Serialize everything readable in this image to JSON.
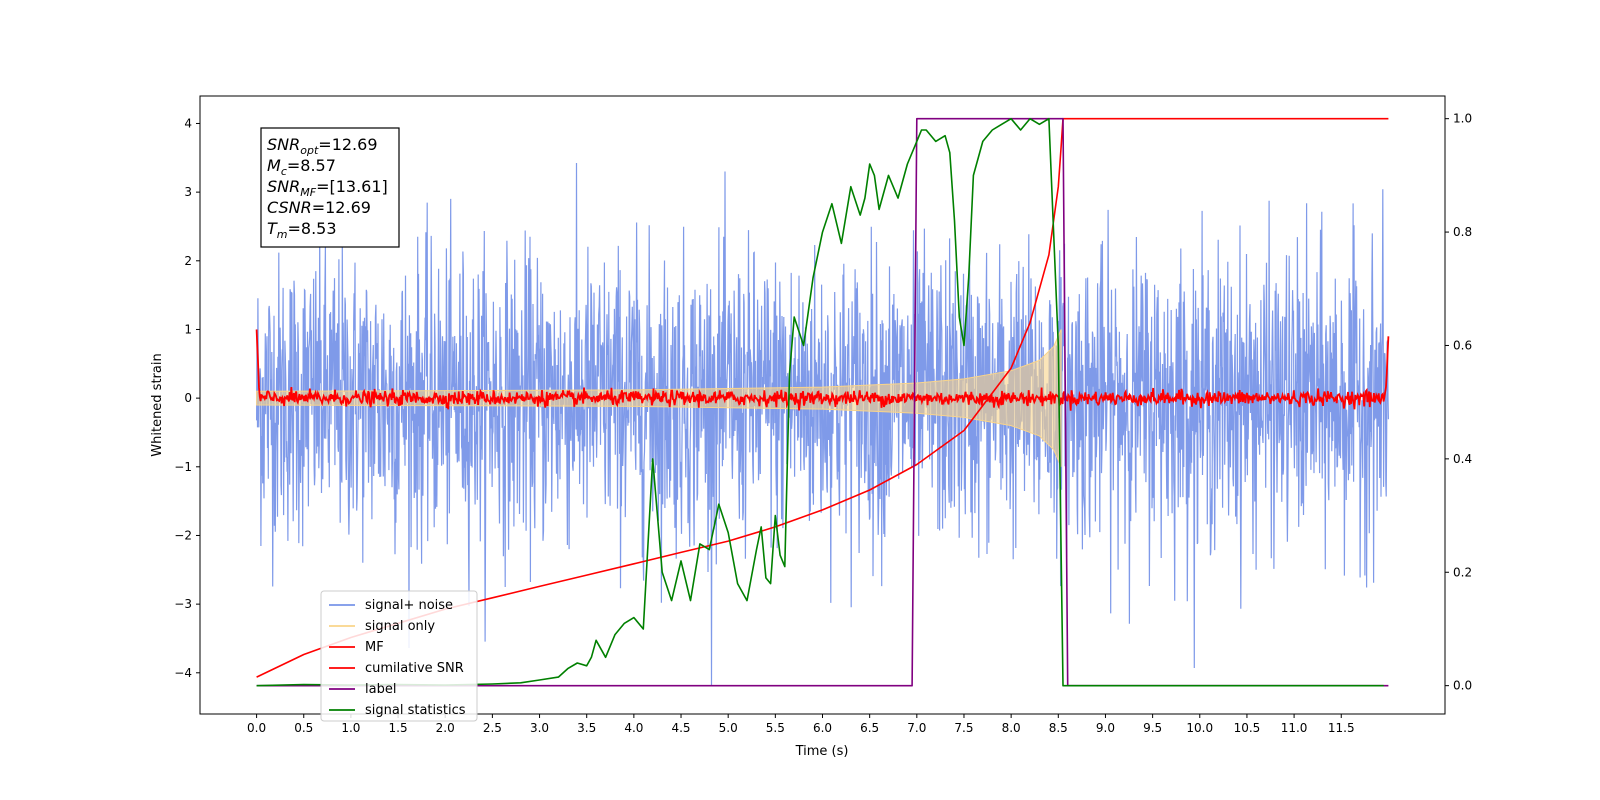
{
  "chart_data": {
    "type": "line",
    "xlabel": "Time (s)",
    "ylabel": "Whitened strain",
    "xlim": [
      -0.6,
      12.6
    ],
    "ylim": [
      -4.6,
      4.4
    ],
    "y2lim": [
      -0.05,
      1.04
    ],
    "x_ticks": [
      "0.0",
      "0.5",
      "1.0",
      "1.5",
      "2.0",
      "2.5",
      "3.0",
      "3.5",
      "4.0",
      "4.5",
      "5.0",
      "5.5",
      "6.0",
      "6.5",
      "7.0",
      "7.5",
      "8.0",
      "8.5",
      "9.0",
      "9.5",
      "10.0",
      "10.5",
      "11.0",
      "11.5"
    ],
    "y_ticks": [
      "4",
      "3",
      "2",
      "1",
      "0",
      "−1",
      "−2",
      "−3",
      "−4"
    ],
    "y2_ticks": [
      "1.0",
      "0.8",
      "0.6",
      "0.4",
      "0.2",
      "0.0"
    ],
    "legend_position": "lower-left",
    "legend": [
      {
        "label": "signal+ noise",
        "color": "#7895e8"
      },
      {
        "label": "signal only",
        "color": "#f9d48a"
      },
      {
        "label": "MF",
        "color": "#ff0000"
      },
      {
        "label": "cumilative SNR",
        "color": "#ff0000"
      },
      {
        "label": "label",
        "color": "#800080"
      },
      {
        "label": "signal statistics",
        "color": "#008000"
      }
    ],
    "annotation": [
      {
        "main": "SNR",
        "sub": "opt",
        "rest": "=12.69"
      },
      {
        "main": "M",
        "sub": "c",
        "rest": "=8.57"
      },
      {
        "main": "SNR",
        "sub": "MF",
        "rest": "=[13.61]"
      },
      {
        "main": "CSNR",
        "sub": "",
        "rest": "=12.69"
      },
      {
        "main": "T",
        "sub": "m",
        "rest": "=8.53"
      }
    ],
    "series": [
      {
        "name": "signal+ noise",
        "axis": "left",
        "color": "#7895e8",
        "x_range": [
          0.0,
          12.0
        ],
        "amplitude_typical": 2.3,
        "amplitude_min": -4.2,
        "amplitude_max": 3.6
      },
      {
        "name": "signal only",
        "axis": "left",
        "color": "#f9d48a",
        "x_range": [
          0.0,
          8.53
        ],
        "envelope": [
          [
            0.0,
            0.1
          ],
          [
            4.0,
            0.12
          ],
          [
            6.0,
            0.16
          ],
          [
            7.0,
            0.22
          ],
          [
            7.5,
            0.28
          ],
          [
            8.0,
            0.4
          ],
          [
            8.3,
            0.55
          ],
          [
            8.45,
            0.75
          ],
          [
            8.53,
            1.0
          ]
        ]
      },
      {
        "name": "MF",
        "axis": "left",
        "color": "#ff0000",
        "x_range": [
          0.0,
          12.0
        ],
        "baseline": 0.0,
        "noise_amplitude": 0.12,
        "edge_values": [
          1.0,
          0.9
        ]
      },
      {
        "name": "cumilative SNR",
        "axis": "right",
        "color": "#ff0000",
        "x": [
          0.0,
          0.5,
          1.0,
          1.5,
          2.0,
          2.5,
          3.0,
          3.5,
          4.0,
          4.5,
          5.0,
          5.5,
          6.0,
          6.5,
          7.0,
          7.5,
          8.0,
          8.2,
          8.4,
          8.5,
          8.53,
          8.55,
          12.0
        ],
        "y": [
          0.015,
          0.055,
          0.085,
          0.11,
          0.135,
          0.155,
          0.175,
          0.195,
          0.215,
          0.235,
          0.255,
          0.28,
          0.31,
          0.345,
          0.39,
          0.45,
          0.56,
          0.64,
          0.76,
          0.88,
          0.95,
          1.0,
          1.0
        ]
      },
      {
        "name": "label",
        "axis": "right",
        "color": "#800080",
        "x": [
          0.0,
          6.95,
          7.0,
          8.55,
          8.6,
          12.0
        ],
        "y": [
          0.0,
          0.0,
          1.0,
          1.0,
          0.0,
          0.0
        ]
      },
      {
        "name": "signal statistics",
        "axis": "right",
        "color": "#008000",
        "x": [
          0.0,
          0.5,
          1.0,
          1.5,
          2.0,
          2.5,
          2.8,
          3.0,
          3.2,
          3.3,
          3.4,
          3.5,
          3.55,
          3.6,
          3.7,
          3.8,
          3.9,
          4.0,
          4.1,
          4.2,
          4.3,
          4.4,
          4.5,
          4.6,
          4.7,
          4.8,
          4.9,
          5.0,
          5.1,
          5.2,
          5.3,
          5.35,
          5.4,
          5.45,
          5.5,
          5.55,
          5.6,
          5.65,
          5.7,
          5.8,
          5.9,
          6.0,
          6.1,
          6.2,
          6.3,
          6.4,
          6.45,
          6.5,
          6.55,
          6.6,
          6.7,
          6.8,
          6.9,
          7.0,
          7.05,
          7.1,
          7.2,
          7.3,
          7.35,
          7.4,
          7.45,
          7.5,
          7.55,
          7.6,
          7.7,
          7.8,
          7.9,
          8.0,
          8.1,
          8.2,
          8.3,
          8.4,
          8.5,
          8.52,
          8.55,
          8.6,
          9.0,
          10.0,
          11.0,
          11.95
        ],
        "y": [
          0.0,
          0.002,
          0.001,
          0.002,
          0.001,
          0.003,
          0.005,
          0.01,
          0.015,
          0.03,
          0.04,
          0.035,
          0.05,
          0.08,
          0.05,
          0.09,
          0.11,
          0.12,
          0.1,
          0.4,
          0.2,
          0.15,
          0.22,
          0.15,
          0.25,
          0.24,
          0.32,
          0.27,
          0.18,
          0.15,
          0.24,
          0.28,
          0.19,
          0.18,
          0.3,
          0.23,
          0.21,
          0.55,
          0.65,
          0.6,
          0.72,
          0.8,
          0.85,
          0.78,
          0.88,
          0.83,
          0.86,
          0.92,
          0.9,
          0.84,
          0.9,
          0.86,
          0.92,
          0.96,
          0.98,
          0.98,
          0.96,
          0.97,
          0.94,
          0.82,
          0.65,
          0.6,
          0.72,
          0.9,
          0.96,
          0.98,
          0.99,
          1.0,
          0.98,
          1.0,
          0.99,
          1.0,
          0.6,
          0.35,
          0.0,
          0.0,
          0.0,
          0.0,
          0.0,
          0.0
        ]
      }
    ]
  }
}
